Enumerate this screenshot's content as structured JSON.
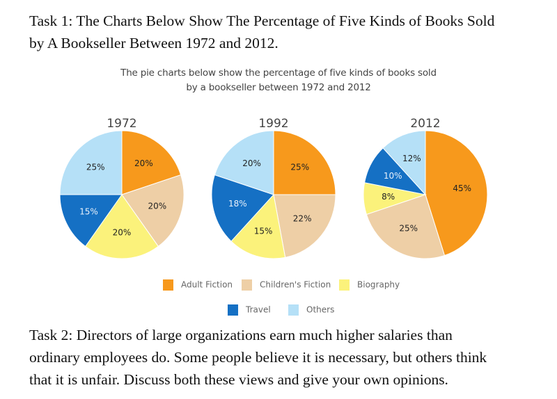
{
  "task1": {
    "line1": "Task 1:  The Charts Below Show The Percentage of Five Kinds of Books Sold",
    "line2": "by A Bookseller Between 1972 and 2012."
  },
  "task2": {
    "line1": "Task 2: Directors of large organizations earn much higher salaries than",
    "line2": "ordinary employees do. Some people believe it is necessary, but others think",
    "line3": "that it is unfair. Discuss both these views and give your own opinions."
  },
  "chart_data": {
    "type": "pie",
    "title": "The pie charts below show the percentage of five kinds of books sold by a bookseller between 1972 and 2012",
    "title_lines": [
      "The pie charts below show the percentage of five kinds of books sold",
      "by a bookseller between 1972 and 2012"
    ],
    "categories": [
      "Adult Fiction",
      "Children's Fiction",
      "Biography",
      "Travel",
      "Others"
    ],
    "colors": [
      "#f7991c",
      "#eecfa6",
      "#fbf27b",
      "#1570c4",
      "#b5e0f7"
    ],
    "legend_position": "bottom",
    "pies": [
      {
        "name": "1972",
        "values": [
          20,
          20,
          20,
          15,
          25
        ]
      },
      {
        "name": "1992",
        "values": [
          25,
          22,
          15,
          18,
          20
        ]
      },
      {
        "name": "2012",
        "values": [
          45,
          25,
          8,
          10,
          12
        ]
      }
    ]
  }
}
